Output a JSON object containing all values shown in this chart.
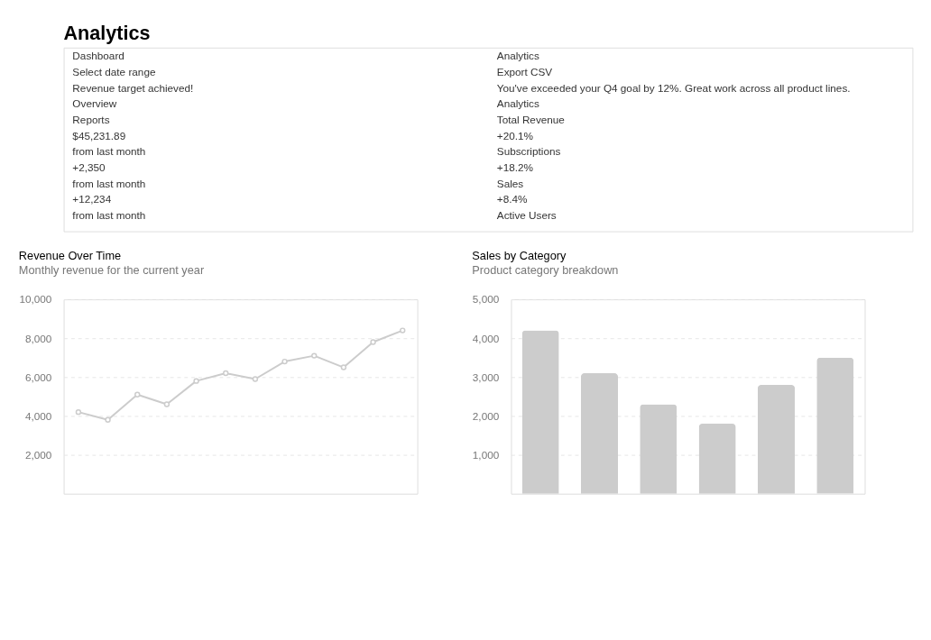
{
  "chart_data": [
    {
      "type": "other",
      "title": "Analytics",
      "annotations": [
        "Dashboard",
        "Analytics",
        "Select date range",
        "Export CSV",
        "Revenue target achieved!",
        "You've exceeded your Q4 goal by 12%. Great work across all product lines.",
        "Overview",
        "Analytics",
        "Reports",
        "Total Revenue",
        "$45,231.89",
        "+20.1%",
        "from last month",
        "Subscriptions",
        "+2,350",
        "+18.2%",
        "from last month",
        "Sales",
        "+12,234",
        "+8.4%",
        "from last month",
        "Active Users"
      ]
    },
    {
      "type": "line",
      "title": "Revenue Over Time",
      "subtitle": "Monthly revenue for the current year",
      "categories": [
        null,
        null,
        null,
        null,
        null,
        null,
        null,
        null,
        null,
        null,
        null,
        null
      ],
      "series": [
        {
          "color": "#cccccc",
          "values": [
            4200,
            3800,
            5100,
            4600,
            5800,
            6200,
            5900,
            6800,
            7100,
            6500,
            7800,
            8400
          ]
        }
      ],
      "ylim": [
        0,
        10000
      ],
      "yticks": [
        {
          "value": 2000,
          "label": "2,000"
        },
        {
          "value": 4000,
          "label": "4,000"
        },
        {
          "value": 6000,
          "label": "6,000"
        },
        {
          "value": 8000,
          "label": "8,000"
        },
        {
          "value": 10000,
          "label": "10,000"
        }
      ],
      "grid": "y",
      "marker": "circle",
      "line_style": "solid",
      "tick_labels": "y"
    },
    {
      "type": "bar",
      "title": "Sales by Category",
      "subtitle": "Product category breakdown",
      "categories": [
        null,
        null,
        null,
        null,
        null,
        null
      ],
      "series": [
        {
          "color": "#cccccc",
          "values": [
            4200,
            3100,
            2300,
            1800,
            2800,
            3500
          ]
        }
      ],
      "ylim": [
        0,
        5000
      ],
      "yticks": [
        {
          "value": 1000,
          "label": "1,000"
        },
        {
          "value": 2000,
          "label": "2,000"
        },
        {
          "value": 3000,
          "label": "3,000"
        },
        {
          "value": 4000,
          "label": "4,000"
        },
        {
          "value": 5000,
          "label": "5,000"
        }
      ],
      "grid": "y",
      "tick_labels": "y"
    }
  ]
}
